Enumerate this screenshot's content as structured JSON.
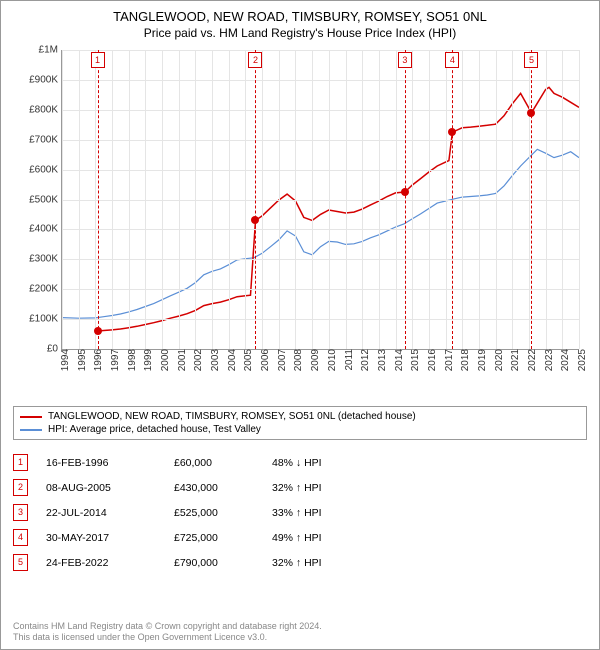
{
  "title": "TANGLEWOOD, NEW ROAD, TIMSBURY, ROMSEY, SO51 0NL",
  "subtitle": "Price paid vs. HM Land Registry's House Price Index (HPI)",
  "chart": {
    "type": "line",
    "background_color": "#ffffff",
    "grid_color": "#e5e5e5",
    "axis_color": "#999999",
    "xlim": [
      1994,
      2025
    ],
    "ylim": [
      0,
      1000000
    ],
    "ytick_step": 100000,
    "ytick_labels": [
      "£0",
      "£100K",
      "£200K",
      "£300K",
      "£400K",
      "£500K",
      "£600K",
      "£700K",
      "£800K",
      "£900K",
      "£1M"
    ],
    "xtick_step": 1,
    "xtick_labels": [
      "1994",
      "1995",
      "1996",
      "1997",
      "1998",
      "1999",
      "2000",
      "2001",
      "2002",
      "2003",
      "2004",
      "2005",
      "2006",
      "2007",
      "2008",
      "2009",
      "2010",
      "2011",
      "2012",
      "2013",
      "2014",
      "2015",
      "2016",
      "2017",
      "2018",
      "2019",
      "2020",
      "2021",
      "2022",
      "2023",
      "2024",
      "2025"
    ],
    "label_fontsize": 10,
    "series": [
      {
        "name": "hpi",
        "label": "HPI: Average price, detached house, Test Valley",
        "color": "#5b8fd6",
        "line_width": 1.2,
        "points": [
          [
            1994,
            105000
          ],
          [
            1995,
            103000
          ],
          [
            1996,
            104000
          ],
          [
            1996.5,
            108000
          ],
          [
            1997,
            112000
          ],
          [
            1997.5,
            117000
          ],
          [
            1998,
            124000
          ],
          [
            1998.5,
            132000
          ],
          [
            1999,
            142000
          ],
          [
            1999.5,
            152000
          ],
          [
            2000,
            165000
          ],
          [
            2000.5,
            178000
          ],
          [
            2001,
            190000
          ],
          [
            2001.5,
            203000
          ],
          [
            2002,
            222000
          ],
          [
            2002.5,
            248000
          ],
          [
            2003,
            260000
          ],
          [
            2003.5,
            268000
          ],
          [
            2004,
            282000
          ],
          [
            2004.5,
            298000
          ],
          [
            2005,
            302000
          ],
          [
            2005.5,
            305000
          ],
          [
            2006,
            320000
          ],
          [
            2006.5,
            342000
          ],
          [
            2007,
            365000
          ],
          [
            2007.5,
            395000
          ],
          [
            2008,
            378000
          ],
          [
            2008.5,
            325000
          ],
          [
            2009,
            315000
          ],
          [
            2009.5,
            342000
          ],
          [
            2010,
            360000
          ],
          [
            2010.5,
            358000
          ],
          [
            2011,
            350000
          ],
          [
            2011.5,
            352000
          ],
          [
            2012,
            360000
          ],
          [
            2012.5,
            372000
          ],
          [
            2013,
            382000
          ],
          [
            2013.5,
            395000
          ],
          [
            2014,
            408000
          ],
          [
            2014.5,
            418000
          ],
          [
            2015,
            435000
          ],
          [
            2015.5,
            452000
          ],
          [
            2016,
            470000
          ],
          [
            2016.5,
            488000
          ],
          [
            2017,
            495000
          ],
          [
            2017.5,
            502000
          ],
          [
            2018,
            508000
          ],
          [
            2018.5,
            510000
          ],
          [
            2019,
            512000
          ],
          [
            2019.5,
            515000
          ],
          [
            2020,
            520000
          ],
          [
            2020.5,
            545000
          ],
          [
            2021,
            580000
          ],
          [
            2021.5,
            612000
          ],
          [
            2022,
            640000
          ],
          [
            2022.5,
            668000
          ],
          [
            2023,
            655000
          ],
          [
            2023.5,
            640000
          ],
          [
            2024,
            648000
          ],
          [
            2024.5,
            660000
          ],
          [
            2025,
            640000
          ]
        ]
      },
      {
        "name": "price_paid",
        "label": "TANGLEWOOD, NEW ROAD, TIMSBURY, ROMSEY, SO51 0NL (detached house)",
        "color": "#d40000",
        "line_width": 1.5,
        "points": [
          [
            1996.13,
            60000
          ],
          [
            1996.5,
            62000
          ],
          [
            1997,
            64000
          ],
          [
            1997.5,
            67000
          ],
          [
            1998,
            71000
          ],
          [
            1998.5,
            76000
          ],
          [
            1999,
            82000
          ],
          [
            1999.5,
            88000
          ],
          [
            2000,
            95000
          ],
          [
            2000.5,
            103000
          ],
          [
            2001,
            110000
          ],
          [
            2001.5,
            118000
          ],
          [
            2002,
            129000
          ],
          [
            2002.5,
            145000
          ],
          [
            2003,
            152000
          ],
          [
            2003.5,
            157000
          ],
          [
            2004,
            165000
          ],
          [
            2004.5,
            175000
          ],
          [
            2005,
            178000
          ],
          [
            2005.3,
            180000
          ],
          [
            2005.6,
            430000
          ],
          [
            2006,
            445000
          ],
          [
            2006.5,
            472000
          ],
          [
            2007,
            498000
          ],
          [
            2007.5,
            518000
          ],
          [
            2008,
            495000
          ],
          [
            2008.5,
            440000
          ],
          [
            2009,
            430000
          ],
          [
            2009.5,
            450000
          ],
          [
            2010,
            465000
          ],
          [
            2010.5,
            460000
          ],
          [
            2011,
            455000
          ],
          [
            2011.5,
            458000
          ],
          [
            2012,
            468000
          ],
          [
            2012.5,
            482000
          ],
          [
            2013,
            495000
          ],
          [
            2013.5,
            510000
          ],
          [
            2014,
            522000
          ],
          [
            2014.56,
            525000
          ],
          [
            2015,
            548000
          ],
          [
            2015.5,
            570000
          ],
          [
            2016,
            592000
          ],
          [
            2016.5,
            612000
          ],
          [
            2017,
            625000
          ],
          [
            2017.2,
            630000
          ],
          [
            2017.41,
            725000
          ],
          [
            2018,
            740000
          ],
          [
            2018.5,
            742000
          ],
          [
            2019,
            745000
          ],
          [
            2019.5,
            748000
          ],
          [
            2020,
            752000
          ],
          [
            2020.5,
            780000
          ],
          [
            2021,
            820000
          ],
          [
            2021.5,
            855000
          ],
          [
            2022.15,
            790000
          ],
          [
            2022.5,
            822000
          ],
          [
            2023,
            868000
          ],
          [
            2023.2,
            875000
          ],
          [
            2023.5,
            855000
          ],
          [
            2024,
            842000
          ],
          [
            2024.5,
            825000
          ],
          [
            2025,
            808000
          ]
        ]
      }
    ],
    "sale_markers": [
      {
        "n": "1",
        "x": 1996.13,
        "y": 60000
      },
      {
        "n": "2",
        "x": 2005.6,
        "y": 430000
      },
      {
        "n": "3",
        "x": 2014.56,
        "y": 525000
      },
      {
        "n": "4",
        "x": 2017.41,
        "y": 725000
      },
      {
        "n": "5",
        "x": 2022.15,
        "y": 790000
      }
    ],
    "sale_marker_color": "#d40000"
  },
  "legend": {
    "border_color": "#999999",
    "fontsize": 10,
    "rows": [
      {
        "color": "#d40000",
        "label": "TANGLEWOOD, NEW ROAD, TIMSBURY, ROMSEY, SO51 0NL (detached house)"
      },
      {
        "color": "#5b8fd6",
        "label": "HPI: Average price, detached house, Test Valley"
      }
    ]
  },
  "sales_table": {
    "rows": [
      {
        "n": "1",
        "date": "16-FEB-1996",
        "price": "£60,000",
        "pct": "48%",
        "dir": "↓",
        "suffix": "HPI"
      },
      {
        "n": "2",
        "date": "08-AUG-2005",
        "price": "£430,000",
        "pct": "32%",
        "dir": "↑",
        "suffix": "HPI"
      },
      {
        "n": "3",
        "date": "22-JUL-2014",
        "price": "£525,000",
        "pct": "33%",
        "dir": "↑",
        "suffix": "HPI"
      },
      {
        "n": "4",
        "date": "30-MAY-2017",
        "price": "£725,000",
        "pct": "49%",
        "dir": "↑",
        "suffix": "HPI"
      },
      {
        "n": "5",
        "date": "24-FEB-2022",
        "price": "£790,000",
        "pct": "32%",
        "dir": "↑",
        "suffix": "HPI"
      }
    ],
    "marker_color": "#d40000"
  },
  "footer": {
    "line1": "Contains HM Land Registry data © Crown copyright and database right 2024.",
    "line2": "This data is licensed under the Open Government Licence v3.0.",
    "color": "#888888"
  }
}
